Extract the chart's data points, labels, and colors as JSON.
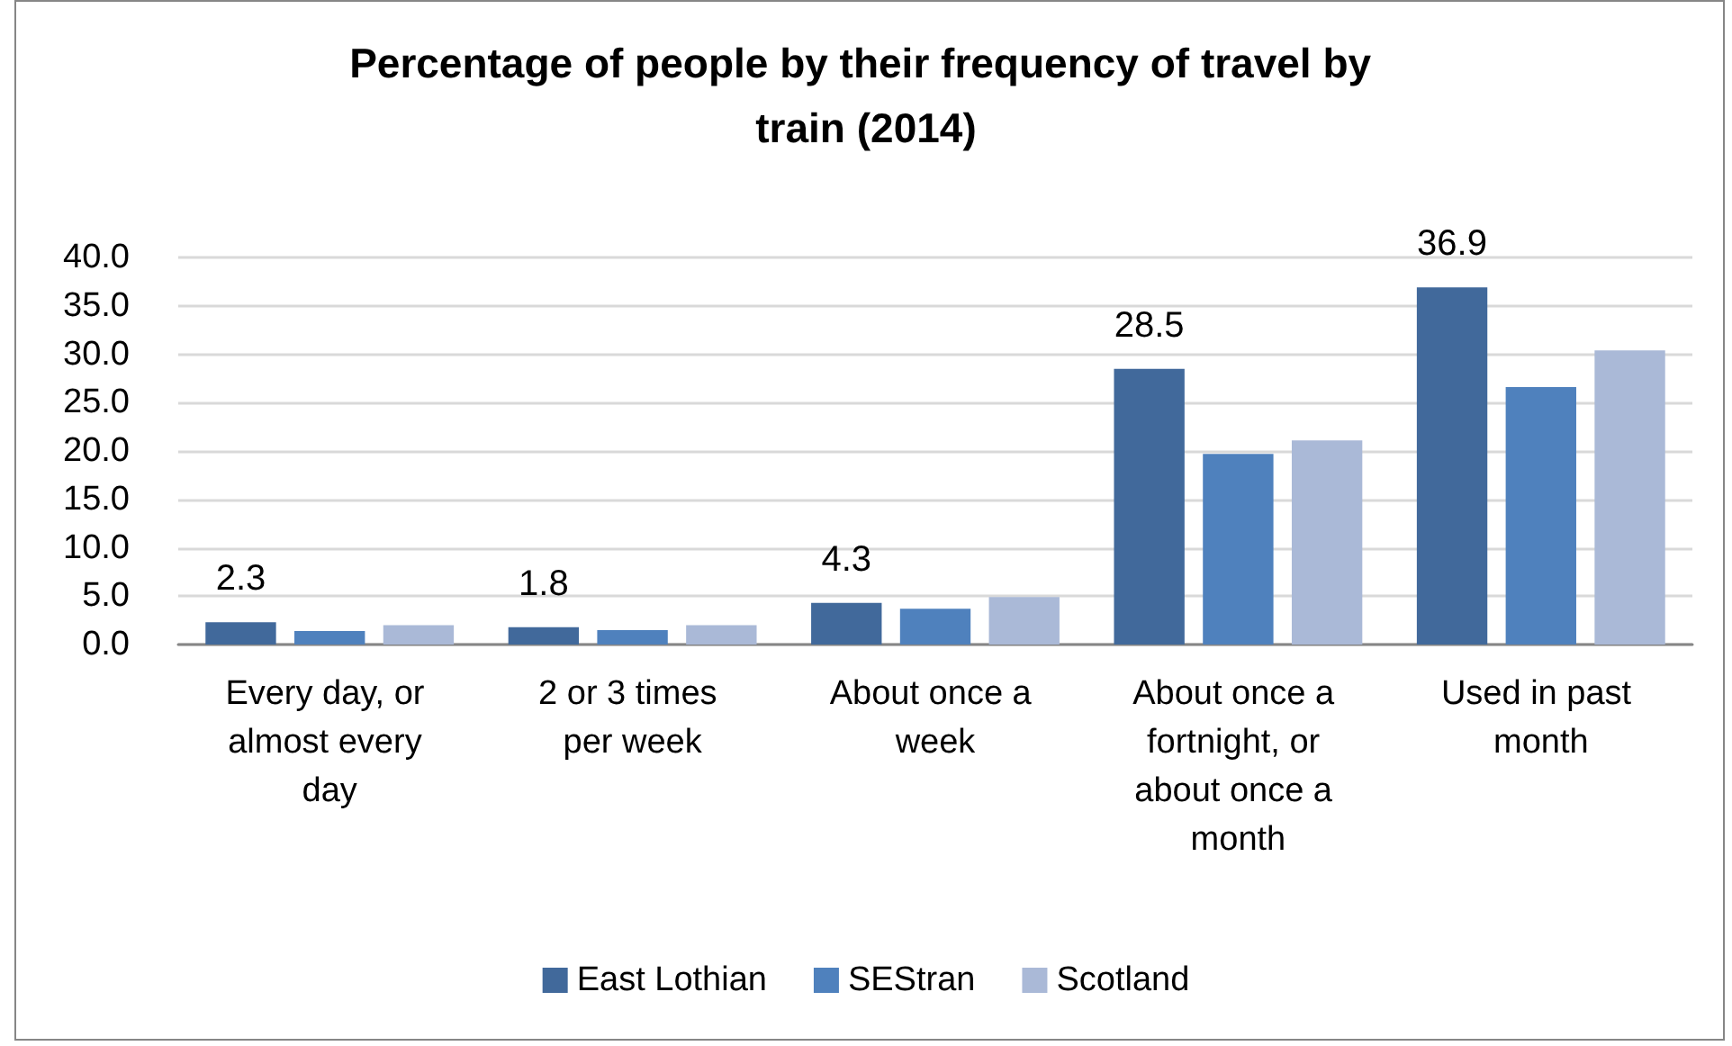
{
  "chart_data": {
    "type": "bar",
    "title": "Percentage of people by their frequency of travel by train (2014)",
    "categories": [
      "Every day, or almost every day",
      "2 or 3 times per week",
      "About once a week",
      "About once a fortnight, or about once a month",
      "Used in past month"
    ],
    "series": [
      {
        "name": "East Lothian",
        "color": "#41699b",
        "values": [
          2.3,
          1.8,
          4.3,
          28.5,
          36.9
        ],
        "value_labels": [
          "2.3",
          "1.8",
          "4.3",
          "28.5",
          "36.9"
        ]
      },
      {
        "name": "SEStran",
        "color": "#4f81bd",
        "values": [
          1.4,
          1.5,
          3.7,
          19.7,
          26.6
        ]
      },
      {
        "name": "Scotland",
        "color": "#aab9d7",
        "values": [
          2.0,
          2.0,
          4.9,
          21.1,
          30.4
        ]
      }
    ],
    "ylim": [
      0,
      40
    ],
    "yticks": [
      {
        "value": 0,
        "label": "0.0"
      },
      {
        "value": 5,
        "label": "5.0"
      },
      {
        "value": 10,
        "label": "10.0"
      },
      {
        "value": 15,
        "label": "15.0"
      },
      {
        "value": 20,
        "label": "20.0"
      },
      {
        "value": 25,
        "label": "25.0"
      },
      {
        "value": 30,
        "label": "30.0"
      },
      {
        "value": 35,
        "label": "35.0"
      },
      {
        "value": 40,
        "label": "40.0"
      }
    ],
    "grid": "y",
    "legend": "bottom"
  }
}
